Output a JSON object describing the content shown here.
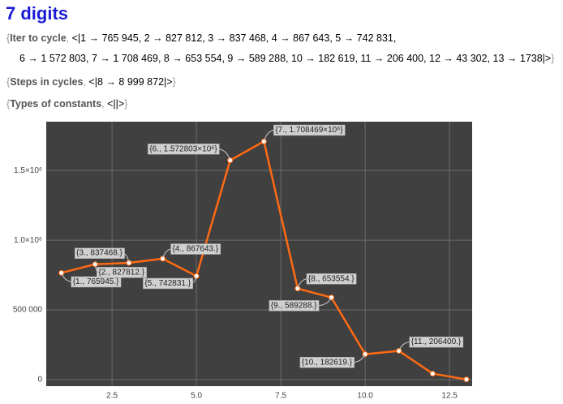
{
  "title": "7 digits",
  "outputs": [
    {
      "label": "Iter to cycle",
      "lines": [
        "<|1 → 765 945, 2 → 827 812, 3 → 837 468, 4 → 867 643, 5 → 742 831,",
        "6 → 1 572 803, 7 → 1 708 469, 8 → 653 554, 9 → 589 288, 10 → 182 619, 11 → 206 400, 12 → 43 302, 13 → 1738|>"
      ]
    },
    {
      "label": "Steps in cycles",
      "lines": [
        "<|8 → 8 999 872|>"
      ]
    },
    {
      "label": "Types of constants",
      "lines": [
        "<||>"
      ]
    }
  ],
  "chart_data": {
    "type": "line",
    "x": [
      1,
      2,
      3,
      4,
      5,
      6,
      7,
      8,
      9,
      10,
      11,
      12,
      13
    ],
    "values": [
      765945,
      827812,
      837468,
      867643,
      742831,
      1572803,
      1708469,
      653554,
      589288,
      182619,
      206400,
      43302,
      1738
    ],
    "value_labels": [
      "{1., 765945.}",
      "{2., 827812.}",
      "{3., 837468.}",
      "{4., 867643.}",
      "{5., 742831.}",
      "{6., 1.572803×10⁶}",
      "{7., 1.708469×10⁶}",
      "{8., 653554.}",
      "{9., 589288.}",
      "{10., 182619.}",
      "{11., 206400.}",
      null,
      null
    ],
    "color": "#ff6a13",
    "xlim": [
      0.55,
      13.17
    ],
    "xticks": [
      2.5,
      {
        "value": 5,
        "label": "5.0"
      },
      7.5,
      {
        "value": 10,
        "label": "10.0"
      },
      12.5
    ],
    "ylim": [
      -46500,
      1850000
    ],
    "yticks": [
      0,
      {
        "value": 500000,
        "label": "500 000"
      },
      {
        "value": 1000000,
        "label": "1.0×10⁶"
      },
      {
        "value": 1500000,
        "label": "1.5×10⁶"
      }
    ],
    "grid": true
  }
}
